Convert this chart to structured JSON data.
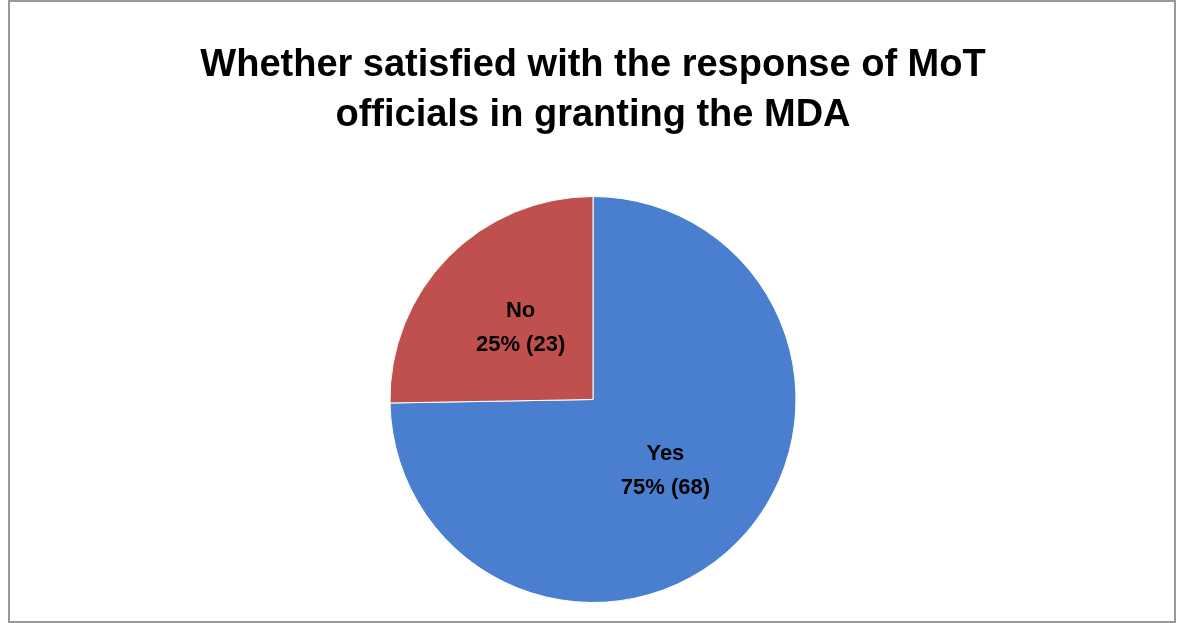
{
  "chart_data": {
    "type": "pie",
    "title": "Whether satisfied with the response of MoT officials in granting the MDA",
    "categories": [
      "Yes",
      "No"
    ],
    "values": [
      68,
      23
    ],
    "value_labels": [
      "75% (68)",
      "25% (23)"
    ],
    "colors": [
      "#4a7fcf",
      "#c0504d"
    ],
    "legend": false
  }
}
